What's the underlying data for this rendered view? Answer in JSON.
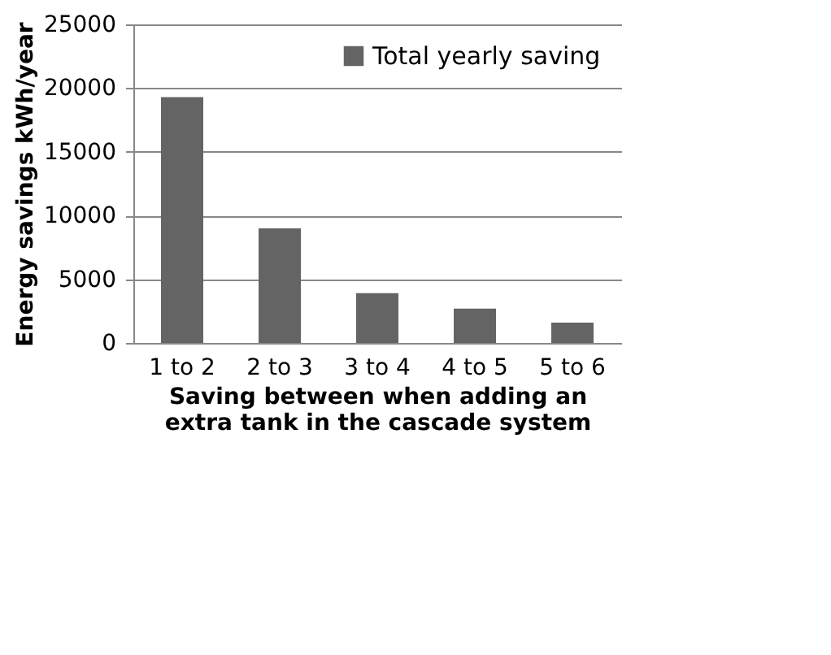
{
  "chart_data": {
    "type": "bar",
    "categories": [
      "1 to 2",
      "2 to 3",
      "3 to 4",
      "4 to 5",
      "5 to 6"
    ],
    "series": [
      {
        "name": "Total yearly saving",
        "color": "#646464",
        "values": [
          19300,
          9000,
          3900,
          2700,
          1600
        ]
      }
    ],
    "xlabel": "Saving between when adding an extra tank in the cascade system",
    "ylabel": "Energy savings kWh/year",
    "ylim": [
      0,
      25000
    ],
    "yticks": [
      0,
      5000,
      10000,
      15000,
      20000,
      25000
    ],
    "grid": "y",
    "legend": "top right"
  }
}
